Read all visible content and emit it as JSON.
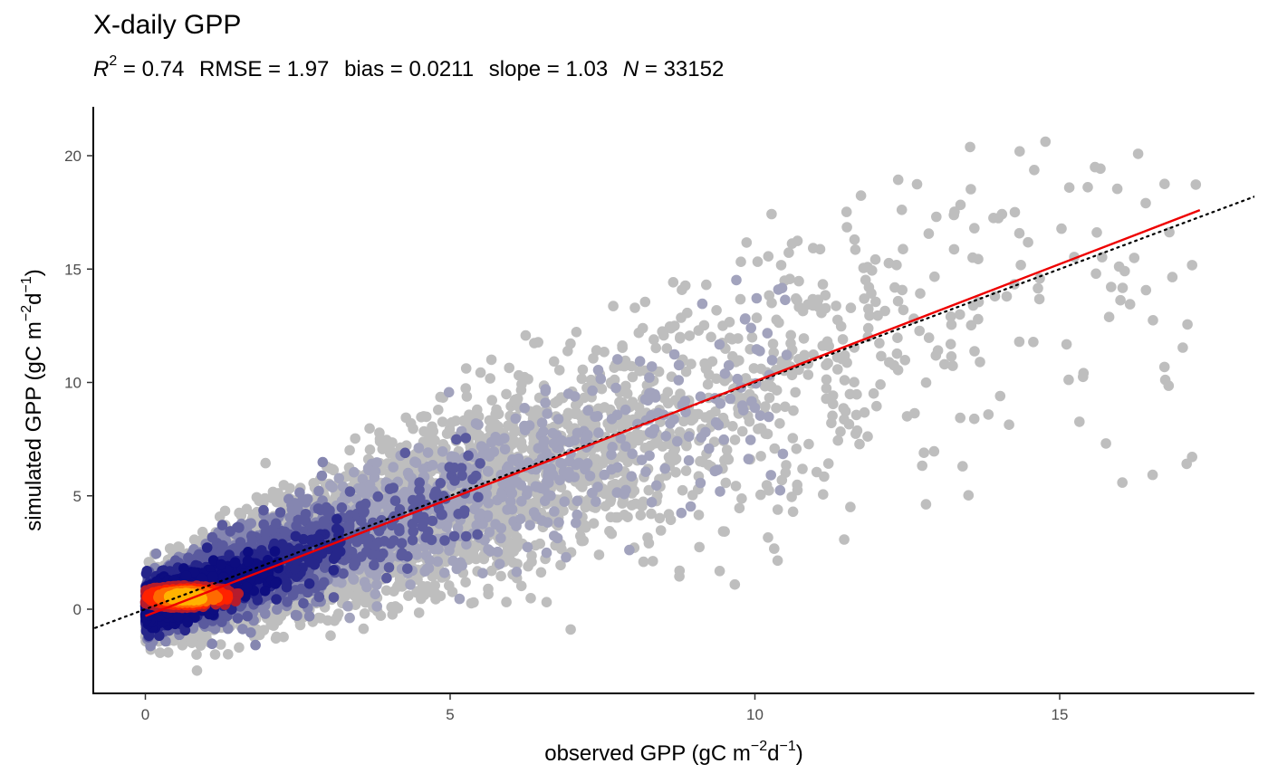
{
  "chart_data": {
    "type": "scatter",
    "title": "X-daily GPP",
    "subtitle": {
      "r2_symbol": "R",
      "r2_exp": "2",
      "r2": "= 0.74",
      "rmse": "RMSE = 1.97",
      "bias": "bias = 0.0211",
      "slope": "slope = 1.03",
      "n_symbol": "N",
      "n": "= 33152"
    },
    "xlabel": {
      "text": "observed GPP (gC m",
      "exp1": "−2",
      "mid": "d",
      "exp2": "−1",
      "end": ")"
    },
    "ylabel": {
      "text": "simulated GPP (gC m",
      "exp1": "−2",
      "mid": "d",
      "exp2": "−1",
      "end": ")"
    },
    "xlim": [
      -1.7,
      36.5
    ],
    "ylim": [
      -3.7,
      21.9
    ],
    "xticks": [
      0,
      5,
      10,
      15
    ],
    "yticks": [
      0,
      5,
      10,
      15,
      20
    ],
    "xtick_labels": [
      "0",
      "5",
      "10",
      "15"
    ],
    "ytick_labels": [
      "0",
      "5",
      "10",
      "15",
      "20"
    ],
    "grid": false,
    "n_points": 33152,
    "point_color_low_density": "#bebebe",
    "density_colors": [
      "#a2a3bd",
      "#8586b0",
      "#5a5a9e",
      "#26268a",
      "#0d0d80",
      "#b51c2d",
      "#ff2200",
      "#ff6a00",
      "#ffb300",
      "#ffd400"
    ],
    "fit_line": {
      "color": "#ee0000",
      "x": [
        0,
        17.3
      ],
      "y": [
        -0.3,
        17.6
      ]
    },
    "identity_line": {
      "style": "dotted",
      "color": "#000000",
      "slope": 1,
      "intercept": 0
    }
  }
}
